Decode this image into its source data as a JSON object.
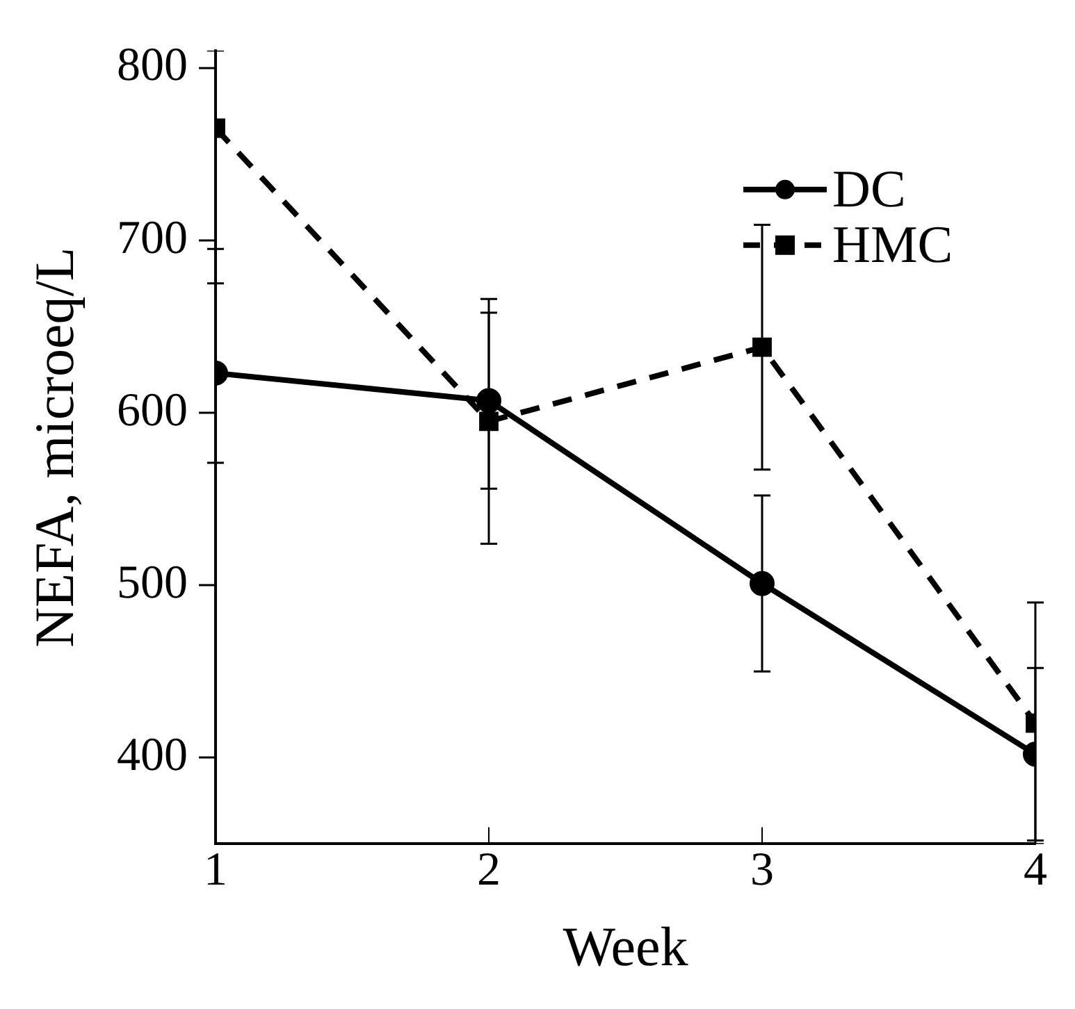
{
  "chart_data": {
    "type": "line",
    "xlabel": "Week",
    "ylabel": "NEFA, microeq/L",
    "x": [
      1,
      2,
      3,
      4
    ],
    "xlim": [
      1,
      4
    ],
    "xticks": [
      1,
      2,
      3,
      4
    ],
    "ylim": [
      350,
      810
    ],
    "yticks": [
      400,
      500,
      600,
      700,
      800
    ],
    "grid": false,
    "legend": "top right",
    "series": [
      {
        "name": "DC",
        "color": "#000000",
        "values": [
          623,
          607,
          501,
          402
        ],
        "errors": [
          52,
          51,
          51,
          50
        ],
        "marker": "circle",
        "line_style": "solid"
      },
      {
        "name": "HMC",
        "color": "#000000",
        "values": [
          765,
          595,
          638,
          420
        ],
        "errors": [
          [
            695,
            810
          ],
          71,
          71,
          70
        ],
        "marker": "square",
        "line_style": "dashed"
      }
    ]
  }
}
